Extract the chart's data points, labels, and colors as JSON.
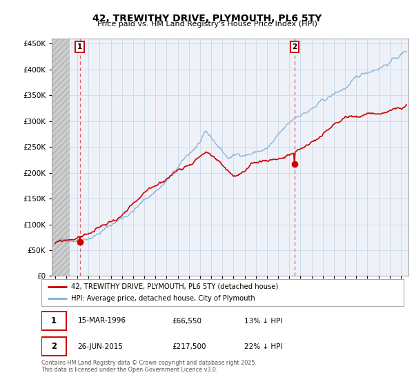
{
  "title": "42, TREWITHY DRIVE, PLYMOUTH, PL6 5TY",
  "subtitle": "Price paid vs. HM Land Registry's House Price Index (HPI)",
  "ylim": [
    0,
    460000
  ],
  "yticks": [
    0,
    50000,
    100000,
    150000,
    200000,
    250000,
    300000,
    350000,
    400000,
    450000
  ],
  "xlim_start": 1993.7,
  "xlim_end": 2025.7,
  "marker1_x": 1996.21,
  "marker1_y": 66550,
  "marker2_x": 2015.49,
  "marker2_y": 217500,
  "legend_line1": "42, TREWITHY DRIVE, PLYMOUTH, PL6 5TY (detached house)",
  "legend_line2": "HPI: Average price, detached house, City of Plymouth",
  "footer": "Contains HM Land Registry data © Crown copyright and database right 2025.\nThis data is licensed under the Open Government Licence v3.0.",
  "red_color": "#cc0000",
  "blue_color": "#7ab0d4",
  "grid_color": "#c8d8e8",
  "plot_bg": "#eef2f8",
  "hatch_bg": "#d0d0d0"
}
